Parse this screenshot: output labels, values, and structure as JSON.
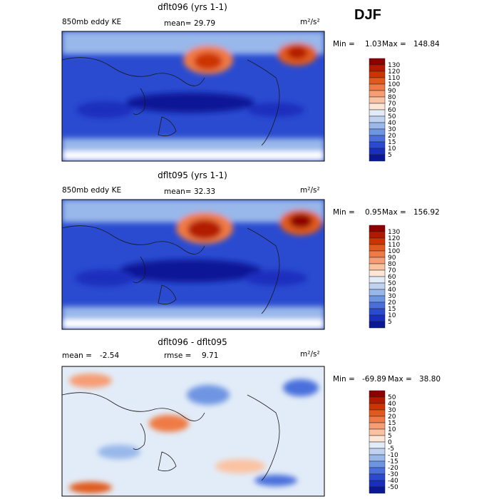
{
  "season": "DJF",
  "chart_data": [
    {
      "type": "heatmap",
      "title": "dflt096 (yrs 1-1)",
      "left_label": "850mb eddy KE",
      "stat_label": "mean=",
      "stat_value": "29.79",
      "units": "m²/s²",
      "min_label": "Min =",
      "min_value": "1.03",
      "max_label": "Max =",
      "max_value": "148.84",
      "legend": {
        "labels": [
          "130",
          "120",
          "110",
          "100",
          "90",
          "80",
          "70",
          "60",
          "50",
          "40",
          "30",
          "20",
          "15",
          "10",
          "5"
        ],
        "colors": [
          "#8e0000",
          "#b21a00",
          "#cc3400",
          "#e05a1e",
          "#ef7a45",
          "#f69d74",
          "#fbc2a2",
          "#fde6d6",
          "#e2ecf8",
          "#bfd3f1",
          "#98b7ea",
          "#6e95e2",
          "#4a6fdc",
          "#2a4bd0",
          "#1a2ebe",
          "#0a1896"
        ]
      }
    },
    {
      "type": "heatmap",
      "title": "dflt095 (yrs 1-1)",
      "left_label": "850mb eddy KE",
      "stat_label": "mean=",
      "stat_value": "32.33",
      "units": "m²/s²",
      "min_label": "Min =",
      "min_value": "0.95",
      "max_label": "Max =",
      "max_value": "156.92",
      "legend": {
        "labels": [
          "130",
          "120",
          "110",
          "100",
          "90",
          "80",
          "70",
          "60",
          "50",
          "40",
          "30",
          "20",
          "15",
          "10",
          "5"
        ],
        "colors": [
          "#8e0000",
          "#b21a00",
          "#cc3400",
          "#e05a1e",
          "#ef7a45",
          "#f69d74",
          "#fbc2a2",
          "#fde6d6",
          "#e2ecf8",
          "#bfd3f1",
          "#98b7ea",
          "#6e95e2",
          "#4a6fdc",
          "#2a4bd0",
          "#1a2ebe",
          "#0a1896"
        ]
      }
    },
    {
      "type": "heatmap",
      "title": "dflt096 - dflt095",
      "left_label": "mean =",
      "left_value": "-2.54",
      "stat_label": "rmse =",
      "stat_value": "9.71",
      "units": "m²/s²",
      "min_label": "Min =",
      "min_value": "-69.89",
      "max_label": "Max =",
      "max_value": "38.80",
      "legend": {
        "labels": [
          "50",
          "40",
          "30",
          "20",
          "15",
          "10",
          "5",
          "0",
          "-5",
          "-10",
          "-15",
          "-20",
          "-30",
          "-40",
          "-50"
        ],
        "colors": [
          "#8e0000",
          "#b21a00",
          "#cc3400",
          "#e05a1e",
          "#ef7a45",
          "#f69d74",
          "#fbc2a2",
          "#fde6d6",
          "#e2ecf8",
          "#bfd3f1",
          "#98b7ea",
          "#6e95e2",
          "#4a6fdc",
          "#2a4bd0",
          "#1a2ebe",
          "#0a1896"
        ]
      }
    }
  ]
}
